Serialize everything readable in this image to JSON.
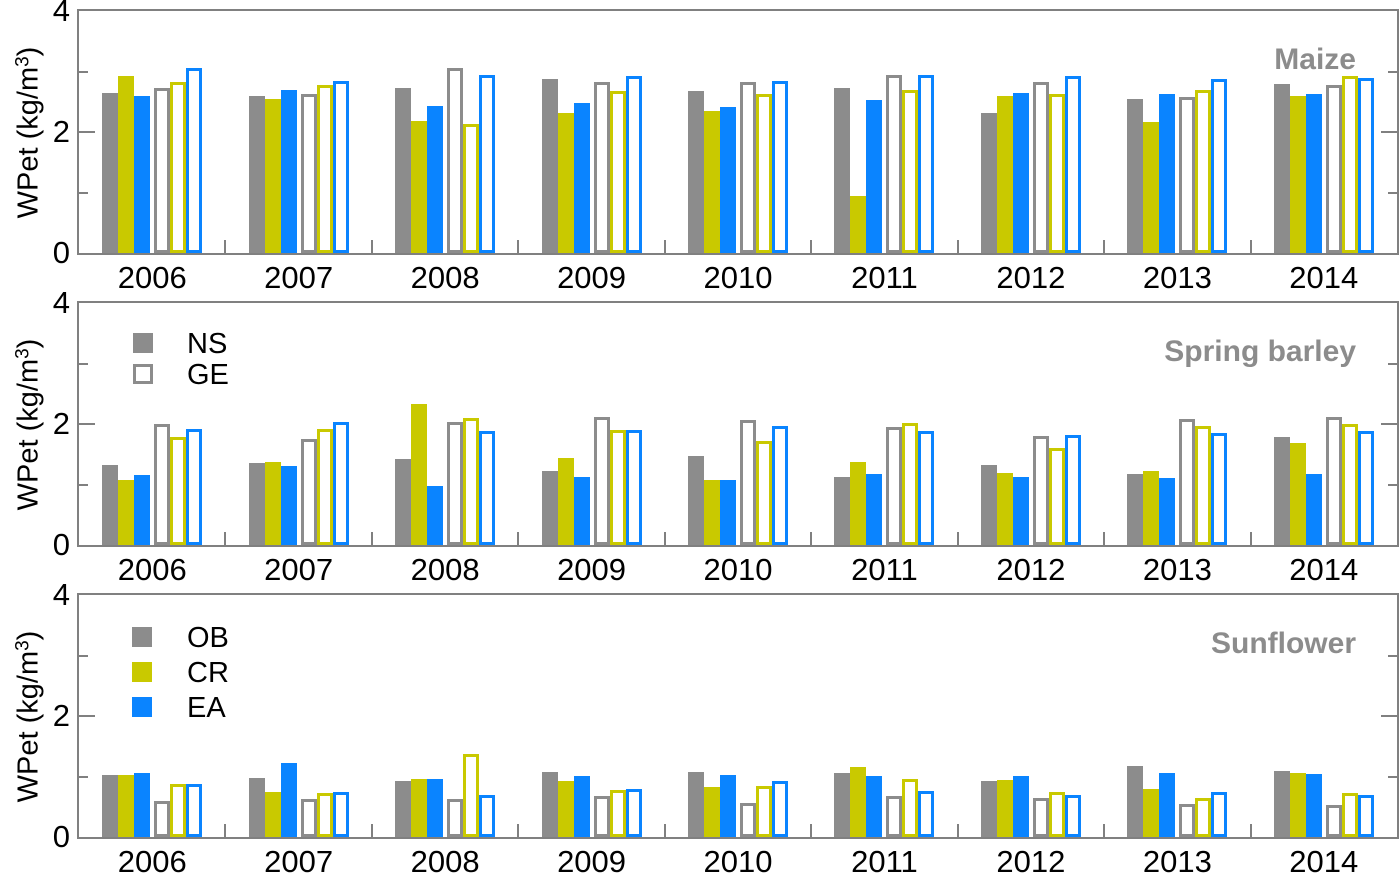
{
  "figure": {
    "ylabel": {
      "pre": "WPet (kg/m",
      "sup": "3",
      "post": ")"
    },
    "colors": {
      "OB": "#8c8c8c",
      "CR": "#c9c900",
      "EA": "#0a84ff",
      "axis": "#808080",
      "panel_title": "#8c8c8c",
      "hollow_fill": "#ffffff"
    }
  },
  "chart_data": [
    {
      "type": "bar",
      "title": "Maize",
      "ylabel": "WPet (kg/m3)",
      "ylim": [
        0,
        4
      ],
      "yticks": [
        0,
        2,
        4
      ],
      "ytick_labels": [
        "0",
        "2",
        "4"
      ],
      "yticks_minor": [
        1,
        3
      ],
      "grid": false,
      "categories": [
        "2006",
        "2007",
        "2008",
        "2009",
        "2010",
        "2011",
        "2012",
        "2013",
        "2014"
      ],
      "series": [
        {
          "name": "NS-OB",
          "group": "NS",
          "color": "OB",
          "style": "filled",
          "values": [
            2.65,
            2.6,
            2.72,
            2.87,
            2.68,
            2.73,
            2.32,
            2.55,
            2.8
          ]
        },
        {
          "name": "NS-CR",
          "group": "NS",
          "color": "CR",
          "style": "filled",
          "values": [
            2.92,
            2.55,
            2.18,
            2.32,
            2.34,
            0.95,
            2.6,
            2.17,
            2.6
          ]
        },
        {
          "name": "NS-EA",
          "group": "NS",
          "color": "EA",
          "style": "filled",
          "values": [
            2.6,
            2.7,
            2.43,
            2.48,
            2.42,
            2.53,
            2.65,
            2.63,
            2.63
          ]
        },
        {
          "name": "GE-OB",
          "group": "GE",
          "color": "OB",
          "style": "hollow",
          "values": [
            2.72,
            2.62,
            3.05,
            2.82,
            2.83,
            2.95,
            2.83,
            2.58,
            2.78
          ]
        },
        {
          "name": "GE-CR",
          "group": "GE",
          "color": "CR",
          "style": "hollow",
          "values": [
            2.83,
            2.78,
            2.13,
            2.67,
            2.62,
            2.7,
            2.62,
            2.7,
            2.93
          ]
        },
        {
          "name": "GE-EA",
          "group": "GE",
          "color": "EA",
          "style": "hollow",
          "values": [
            3.05,
            2.85,
            2.95,
            2.93,
            2.85,
            2.95,
            2.93,
            2.87,
            2.9
          ]
        }
      ],
      "legend": null
    },
    {
      "type": "bar",
      "title": "Spring barley",
      "ylabel": "WPet (kg/m3)",
      "ylim": [
        0,
        4
      ],
      "yticks": [
        0,
        2,
        4
      ],
      "ytick_labels": [
        "0",
        "2",
        "4"
      ],
      "yticks_minor": [
        1,
        3
      ],
      "grid": false,
      "categories": [
        "2006",
        "2007",
        "2008",
        "2009",
        "2010",
        "2011",
        "2012",
        "2013",
        "2014"
      ],
      "series": [
        {
          "name": "NS-OB",
          "group": "NS",
          "color": "OB",
          "style": "filled",
          "values": [
            1.32,
            1.35,
            1.42,
            1.22,
            1.47,
            1.13,
            1.33,
            1.17,
            1.78
          ]
        },
        {
          "name": "NS-CR",
          "group": "NS",
          "color": "CR",
          "style": "filled",
          "values": [
            1.07,
            1.37,
            2.33,
            1.43,
            1.07,
            1.37,
            1.19,
            1.22,
            1.68
          ]
        },
        {
          "name": "NS-EA",
          "group": "NS",
          "color": "EA",
          "style": "filled",
          "values": [
            1.15,
            1.3,
            0.98,
            1.12,
            1.07,
            1.18,
            1.13,
            1.1,
            1.18
          ]
        },
        {
          "name": "GE-OB",
          "group": "GE",
          "color": "OB",
          "style": "hollow",
          "values": [
            2.0,
            1.75,
            2.03,
            2.12,
            2.07,
            1.95,
            1.8,
            2.08,
            2.12
          ]
        },
        {
          "name": "GE-CR",
          "group": "GE",
          "color": "CR",
          "style": "hollow",
          "values": [
            1.78,
            1.92,
            2.1,
            1.9,
            1.72,
            2.02,
            1.6,
            1.97,
            2.0
          ]
        },
        {
          "name": "GE-EA",
          "group": "GE",
          "color": "EA",
          "style": "hollow",
          "values": [
            1.92,
            2.03,
            1.88,
            1.9,
            1.97,
            1.88,
            1.81,
            1.85,
            1.88
          ]
        }
      ],
      "legend": {
        "type": "style",
        "position": "upper left",
        "items": [
          {
            "label": "NS",
            "style": "filled"
          },
          {
            "label": "GE",
            "style": "hollow"
          }
        ]
      }
    },
    {
      "type": "bar",
      "title": "Sunflower",
      "ylabel": "WPet (kg/m3)",
      "ylim": [
        0,
        4
      ],
      "yticks": [
        0,
        2,
        4
      ],
      "ytick_labels": [
        "0",
        "2",
        "4"
      ],
      "yticks_minor": [
        1,
        3
      ],
      "grid": false,
      "categories": [
        "2006",
        "2007",
        "2008",
        "2009",
        "2010",
        "2011",
        "2012",
        "2013",
        "2014"
      ],
      "series": [
        {
          "name": "NS-OB",
          "group": "NS",
          "color": "OB",
          "style": "filled",
          "values": [
            1.02,
            0.98,
            0.93,
            1.08,
            1.08,
            1.05,
            0.93,
            1.18,
            1.09
          ]
        },
        {
          "name": "NS-CR",
          "group": "NS",
          "color": "CR",
          "style": "filled",
          "values": [
            1.02,
            0.75,
            0.96,
            0.93,
            0.82,
            1.15,
            0.95,
            0.8,
            1.05
          ]
        },
        {
          "name": "NS-EA",
          "group": "NS",
          "color": "EA",
          "style": "filled",
          "values": [
            1.05,
            1.22,
            0.96,
            1.0,
            1.03,
            1.01,
            1.0,
            1.06,
            1.04
          ]
        },
        {
          "name": "GE-OB",
          "group": "GE",
          "color": "OB",
          "style": "hollow",
          "values": [
            0.6,
            0.63,
            0.62,
            0.68,
            0.56,
            0.68,
            0.65,
            0.55,
            0.53
          ]
        },
        {
          "name": "GE-CR",
          "group": "GE",
          "color": "CR",
          "style": "hollow",
          "values": [
            0.87,
            0.73,
            1.37,
            0.78,
            0.85,
            0.96,
            0.75,
            0.65,
            0.73
          ]
        },
        {
          "name": "GE-EA",
          "group": "GE",
          "color": "EA",
          "style": "hollow",
          "values": [
            0.88,
            0.75,
            0.7,
            0.8,
            0.92,
            0.76,
            0.7,
            0.74,
            0.7
          ]
        }
      ],
      "legend": {
        "type": "color",
        "position": "upper left",
        "items": [
          {
            "label": "OB",
            "color": "OB"
          },
          {
            "label": "CR",
            "color": "CR"
          },
          {
            "label": "EA",
            "color": "EA"
          }
        ]
      }
    }
  ]
}
